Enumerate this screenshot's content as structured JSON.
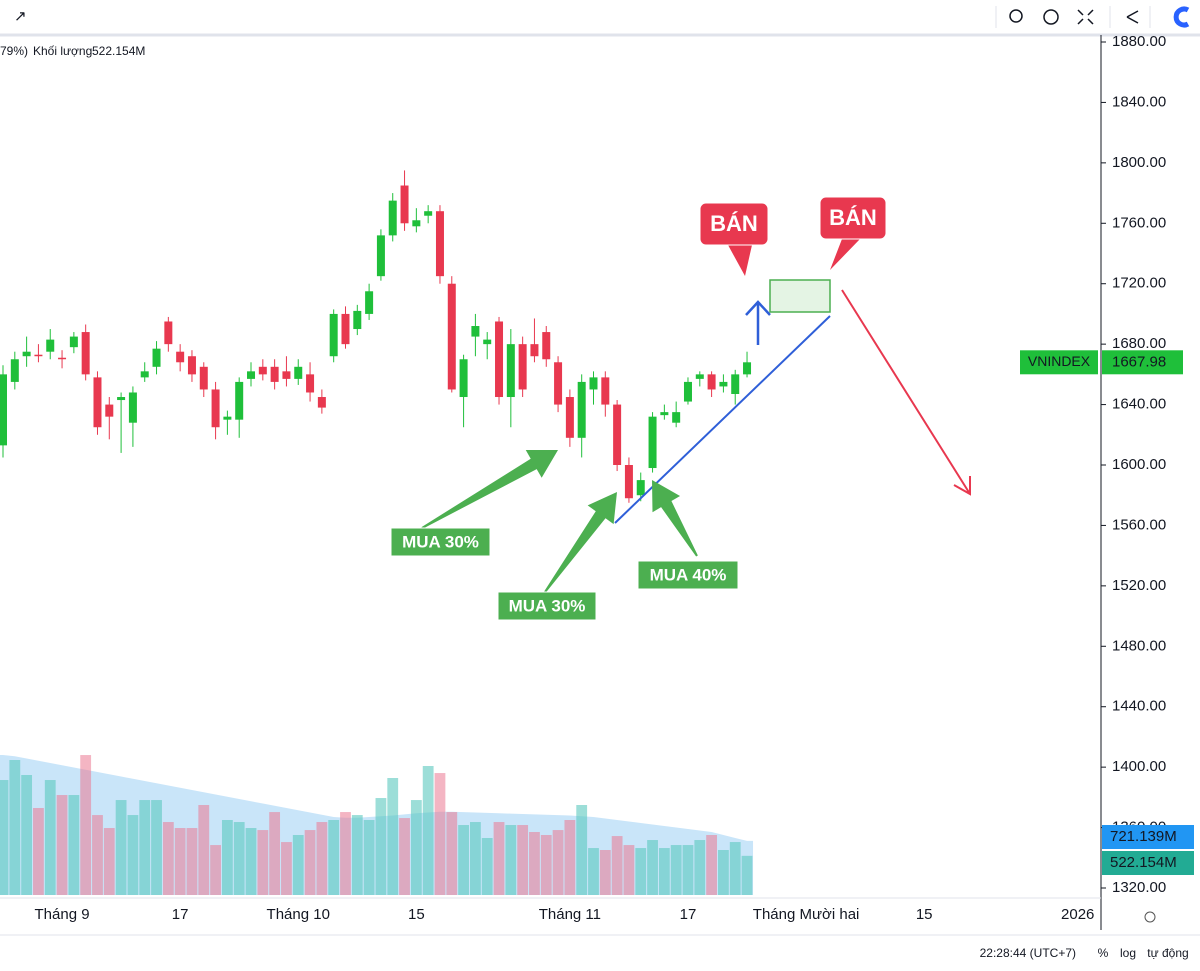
{
  "chart_data": {
    "type": "candlestick",
    "header_fragment": "79%)",
    "categories": [
      null,
      null,
      null,
      null,
      null,
      "Tháng 9",
      null,
      null,
      null,
      null,
      null,
      null,
      null,
      null,
      null,
      "17",
      null,
      null,
      null,
      null,
      null,
      null,
      null,
      null,
      null,
      "Tháng 10",
      null,
      null,
      null,
      null,
      null,
      null,
      null,
      null,
      null,
      "15",
      null,
      null,
      null,
      null,
      null,
      null,
      null,
      null,
      null,
      null,
      null,
      null,
      "Tháng 11",
      null,
      null,
      null,
      null,
      null,
      null,
      null,
      null,
      null,
      "17",
      null,
      null,
      null,
      null,
      null,
      null,
      null,
      null,
      null,
      "Tháng Mười hai",
      null,
      null,
      null,
      null,
      null,
      null,
      null,
      null,
      null,
      "15",
      null,
      null,
      null,
      null,
      null,
      null,
      null,
      null,
      null,
      null,
      null,
      null,
      "2026"
    ],
    "open": [
      1613,
      1655,
      1672,
      1673,
      1675,
      1671,
      1678,
      1688,
      1658,
      1640,
      1643,
      1628,
      1658,
      1665,
      1695,
      1675,
      1672,
      1665,
      1650,
      1630,
      1630,
      1657,
      1665,
      1665,
      1662,
      1657,
      1660,
      1645,
      1672,
      1700,
      1690,
      1700,
      1725,
      1752,
      1785,
      1758,
      1765,
      1768,
      1720,
      1645,
      1685,
      1680,
      1695,
      1645,
      1680,
      1680,
      1688,
      1668,
      1645,
      1618,
      1650,
      1658,
      1640,
      1600,
      1580,
      1598,
      1633,
      1628,
      1642,
      1657,
      1660,
      1652,
      1647,
      1660,
      null,
      null,
      null,
      null,
      null,
      null,
      null,
      null,
      null,
      null,
      null,
      null,
      null,
      null,
      null,
      null,
      null,
      null,
      null,
      null,
      null,
      null,
      null,
      null,
      null,
      null,
      null,
      null
    ],
    "high": [
      1666,
      1675,
      1685,
      1680,
      1690,
      1676,
      1688,
      1693,
      1662,
      1645,
      1648,
      1652,
      1668,
      1682,
      1698,
      1680,
      1676,
      1668,
      1655,
      1636,
      1658,
      1668,
      1670,
      1670,
      1672,
      1670,
      1668,
      1650,
      1703,
      1705,
      1706,
      1720,
      1756,
      1780,
      1795,
      1770,
      1772,
      1772,
      1725,
      1673,
      1700,
      1688,
      1698,
      1690,
      1685,
      1697,
      1692,
      1672,
      1650,
      1660,
      1662,
      1662,
      1643,
      1605,
      1595,
      1635,
      1640,
      1642,
      1658,
      1662,
      1662,
      1660,
      1663,
      1675,
      null,
      null,
      null,
      null,
      null,
      null,
      null,
      null,
      null,
      null,
      null,
      null,
      null,
      null,
      null,
      null,
      null,
      null,
      null,
      null,
      null,
      null,
      null,
      null,
      null,
      null,
      null,
      null
    ],
    "low": [
      1605,
      1650,
      1665,
      1668,
      1670,
      1664,
      1674,
      1656,
      1620,
      1617,
      1608,
      1612,
      1655,
      1660,
      1675,
      1662,
      1655,
      1645,
      1617,
      1620,
      1618,
      1652,
      1656,
      1650,
      1652,
      1653,
      1642,
      1634,
      1668,
      1677,
      1686,
      1696,
      1722,
      1748,
      1755,
      1754,
      1760,
      1720,
      1648,
      1625,
      1672,
      1670,
      1640,
      1625,
      1645,
      1668,
      1665,
      1635,
      1612,
      1605,
      1640,
      1632,
      1596,
      1575,
      1576,
      1595,
      1630,
      1625,
      1640,
      1652,
      1645,
      1648,
      1640,
      1658,
      null,
      null,
      null,
      null,
      null,
      null,
      null,
      null,
      null,
      null,
      null,
      null,
      null,
      null,
      null,
      null,
      null,
      null,
      null,
      null,
      null,
      null,
      null,
      null,
      null,
      null,
      null,
      null
    ],
    "close": [
      1660,
      1670,
      1675,
      1672,
      1683,
      1670,
      1685,
      1660,
      1625,
      1632,
      1645,
      1648,
      1662,
      1677,
      1680,
      1668,
      1660,
      1650,
      1625,
      1632,
      1655,
      1662,
      1660,
      1655,
      1657,
      1665,
      1648,
      1638,
      1700,
      1680,
      1702,
      1715,
      1752,
      1775,
      1760,
      1762,
      1768,
      1725,
      1650,
      1670,
      1692,
      1683,
      1645,
      1680,
      1650,
      1672,
      1670,
      1640,
      1618,
      1655,
      1658,
      1640,
      1600,
      1578,
      1590,
      1632,
      1635,
      1635,
      1655,
      1660,
      1650,
      1655,
      1660,
      1667.98,
      null,
      null,
      null,
      null,
      null,
      null,
      null,
      null,
      null,
      null,
      null,
      null,
      null,
      null,
      null,
      null,
      null,
      null,
      null,
      null,
      null,
      null,
      null,
      null,
      null,
      null,
      null,
      null
    ],
    "up_color": "#1fbf3a",
    "down_color": "#e8384f",
    "price_label": {
      "name": "VNINDEX",
      "value": 1667.98,
      "color": "#1fbf3a"
    },
    "ylim": [
      1320,
      1880
    ],
    "yticks": [
      {
        "value": 1880,
        "label": "1880.00"
      },
      {
        "value": 1840,
        "label": "1840.00"
      },
      {
        "value": 1800,
        "label": "1800.00"
      },
      {
        "value": 1760,
        "label": "1760.00"
      },
      {
        "value": 1720,
        "label": "1720.00"
      },
      {
        "value": 1680,
        "label": "1680.00"
      },
      {
        "value": 1640,
        "label": "1640.00"
      },
      {
        "value": 1600,
        "label": "1600.00"
      },
      {
        "value": 1560,
        "label": "1560.00"
      },
      {
        "value": 1520,
        "label": "1520.00"
      },
      {
        "value": 1480,
        "label": "1480.00"
      },
      {
        "value": 1440,
        "label": "1440.00"
      },
      {
        "value": 1400,
        "label": "1400.00"
      },
      {
        "value": 1360,
        "label": "1360.00"
      },
      {
        "value": 1320,
        "label": "1320.00"
      }
    ],
    "volume": {
      "name": "Khối lượng",
      "up_color": "rgba(90,200,190,0.6)",
      "down_color": "rgba(235,120,145,0.55)",
      "values": [
        1533,
        1800,
        1600,
        1160,
        1533,
        1333,
        1333,
        1866,
        1066,
        893,
        1266,
        1066,
        1266,
        1266,
        973,
        893,
        893,
        1200,
        666,
        1000,
        973,
        893,
        866,
        1106,
        706,
        800,
        866,
        973,
        1000,
        1106,
        1066,
        1000,
        1293,
        1560,
        1026,
        1266,
        1720,
        1626,
        1106,
        933,
        973,
        760,
        973,
        933,
        933,
        840,
        800,
        866,
        1000,
        1200,
        626,
        600,
        786,
        666,
        626,
        733,
        626,
        666,
        666,
        733,
        800,
        600,
        706,
        522.154,
        null,
        null,
        null,
        null,
        null,
        null,
        null,
        null,
        null,
        null,
        null,
        null,
        null,
        null,
        null,
        null,
        null,
        null,
        null,
        null,
        null,
        null,
        null,
        null,
        null,
        null,
        null,
        null
      ],
      "value_labels": [
        null,
        null,
        null,
        null,
        null,
        null,
        null,
        null,
        null,
        null,
        null,
        null,
        null,
        null,
        null,
        null,
        null,
        null,
        null,
        null,
        null,
        null,
        null,
        null,
        null,
        null,
        null,
        null,
        null,
        null,
        null,
        null,
        null,
        null,
        null,
        null,
        null,
        null,
        null,
        null,
        null,
        null,
        null,
        null,
        null,
        null,
        null,
        null,
        null,
        null,
        null,
        null,
        null,
        null,
        null,
        null,
        null,
        null,
        null,
        null,
        null,
        null,
        null,
        "522.154M",
        null,
        null,
        null,
        null,
        null,
        null,
        null,
        null,
        null,
        null,
        null,
        null,
        null,
        null,
        null,
        null,
        null,
        null,
        null,
        null,
        null,
        null,
        null,
        null,
        null,
        null,
        null,
        null
      ],
      "label_color": "#22ab94"
    },
    "volume_ma": {
      "color": "rgba(120,190,240,0.4)",
      "label_color": "#2196f3",
      "values": [
        1866,
        1850,
        1820,
        1790,
        1760,
        1730,
        1700,
        1670,
        1640,
        1610,
        1580,
        1550,
        1520,
        1490,
        1460,
        1430,
        1400,
        1370,
        1340,
        1310,
        1280,
        1250,
        1220,
        1190,
        1160,
        1130,
        1100,
        1070,
        1040,
        1030,
        1030,
        1040,
        1050,
        1060,
        1075,
        1090,
        1100,
        1110,
        1110,
        1105,
        1100,
        1095,
        1090,
        1085,
        1080,
        1075,
        1070,
        1065,
        1060,
        1050,
        1040,
        1020,
        1000,
        980,
        960,
        940,
        920,
        900,
        880,
        860,
        840,
        800,
        760,
        721.139,
        null,
        null,
        null,
        null,
        null,
        null,
        null,
        null,
        null,
        null,
        null,
        null,
        null,
        null,
        null,
        null,
        null,
        null,
        null,
        null,
        null,
        null,
        null,
        null,
        null,
        null,
        null,
        null
      ],
      "value_labels": [
        null,
        null,
        null,
        null,
        null,
        null,
        null,
        null,
        null,
        null,
        null,
        null,
        null,
        null,
        null,
        null,
        null,
        null,
        null,
        null,
        null,
        null,
        null,
        null,
        null,
        null,
        null,
        null,
        null,
        null,
        null,
        null,
        null,
        null,
        null,
        null,
        null,
        null,
        null,
        null,
        null,
        null,
        null,
        null,
        null,
        null,
        null,
        null,
        null,
        null,
        null,
        null,
        null,
        null,
        null,
        null,
        null,
        null,
        null,
        null,
        null,
        null,
        null,
        "721.139M",
        null,
        null,
        null,
        null,
        null,
        null,
        null,
        null,
        null,
        null,
        null,
        null,
        null,
        null,
        null,
        null,
        null,
        null,
        null,
        null,
        null,
        null,
        null,
        null,
        null,
        null,
        null,
        null
      ]
    },
    "volume_ylim": [
      0,
      2000
    ],
    "annotations": [
      "BÁN",
      "BÁN",
      "MUA 30%",
      "MUA 30%",
      "MUA 40%"
    ],
    "footer": {
      "time": "22:28:44 (UTC+7)",
      "percent": "%",
      "log": "log",
      "auto": "tự động"
    }
  }
}
